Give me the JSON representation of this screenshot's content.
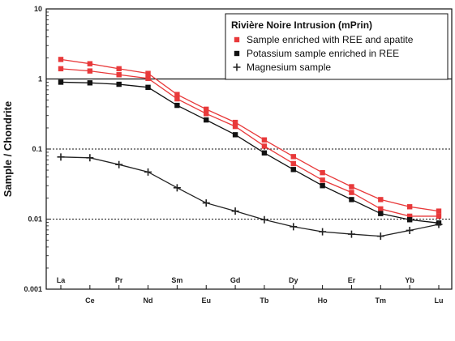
{
  "chart_data": {
    "type": "line",
    "title": "",
    "xlabel": "",
    "ylabel": "Sample / Chondrite",
    "yscale": "log",
    "ylim": [
      0.001,
      10
    ],
    "yticks": [
      "10",
      "1",
      "0.1",
      "0.01",
      "0.001"
    ],
    "grid": "dotted at 0.1 and 0.01, solid at 1",
    "categories": [
      "La",
      "Ce",
      "Pr",
      "Nd",
      "Sm",
      "Eu",
      "Gd",
      "Tb",
      "Dy",
      "Ho",
      "Er",
      "Tm",
      "Yb",
      "Lu"
    ],
    "legend": {
      "title": "Rivière Noire Intrusion (mPrin)",
      "placement": "top-right"
    },
    "series": [
      {
        "name": "Sample enriched with REE and apatite",
        "color": "#e8393a",
        "marker": "square",
        "values": [
          1.9,
          1.65,
          1.4,
          1.2,
          0.6,
          0.37,
          0.24,
          0.135,
          0.078,
          0.046,
          0.029,
          0.019,
          0.015,
          0.013
        ]
      },
      {
        "name": "",
        "color": "#e8393a",
        "marker": "square",
        "values": [
          1.4,
          1.3,
          1.15,
          1.02,
          0.52,
          0.32,
          0.21,
          0.11,
          0.062,
          0.036,
          0.024,
          0.014,
          0.011,
          0.011
        ]
      },
      {
        "name": "Potassium sample enriched in REE",
        "color": "#111111",
        "marker": "square",
        "values": [
          0.9,
          0.88,
          0.84,
          0.76,
          0.42,
          0.26,
          0.16,
          0.088,
          0.051,
          0.03,
          0.019,
          0.012,
          0.0098,
          0.0088
        ]
      },
      {
        "name": "Magnesium sample",
        "color": "#222222",
        "marker": "cross",
        "values": [
          0.077,
          0.075,
          0.06,
          0.047,
          0.028,
          0.017,
          0.013,
          0.0098,
          0.0078,
          0.0066,
          0.0061,
          0.0057,
          0.0069,
          0.0084
        ]
      }
    ]
  }
}
